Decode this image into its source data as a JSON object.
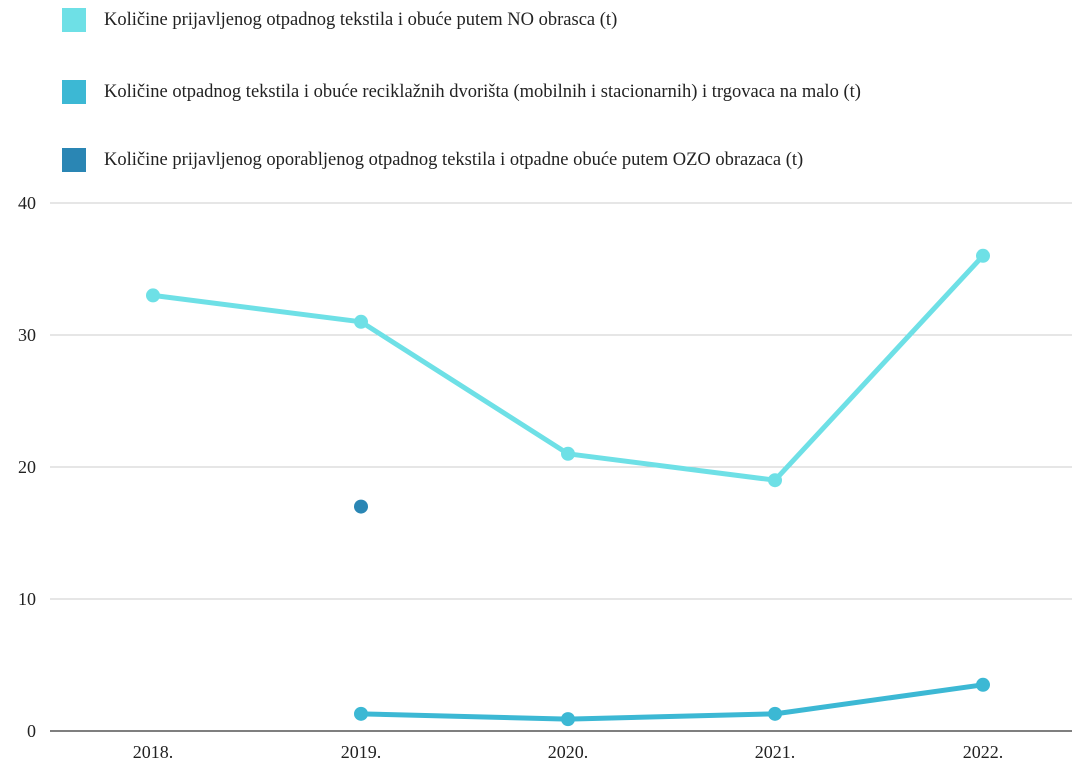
{
  "chart_data": {
    "type": "line",
    "categories": [
      "2018.",
      "2019.",
      "2020.",
      "2021.",
      "2022."
    ],
    "ylim": [
      0,
      40
    ],
    "yticks": [
      0,
      10,
      20,
      30,
      40
    ],
    "grid": true,
    "legend_position": "top-left",
    "series": [
      {
        "name": "Količine prijavljenog otpadnog tekstila i obuće putem NO obrasca (t)",
        "color": "#6ee0e6",
        "values": [
          33,
          31,
          21,
          19,
          36
        ]
      },
      {
        "name": "Količine otpadnog tekstila i obuće reciklažnih dvorišta (mobilnih i stacionarnih) i trgovaca na malo (t)",
        "color": "#3cb8d4",
        "values": [
          null,
          1.3,
          0.9,
          1.3,
          3.5
        ]
      },
      {
        "name": "Količine prijavljenog oporabljenog otpadnog tekstila i otpadne obuće putem OZO obrazaca (t)",
        "color": "#2a86b4",
        "values": [
          null,
          17,
          null,
          null,
          null
        ]
      }
    ]
  }
}
